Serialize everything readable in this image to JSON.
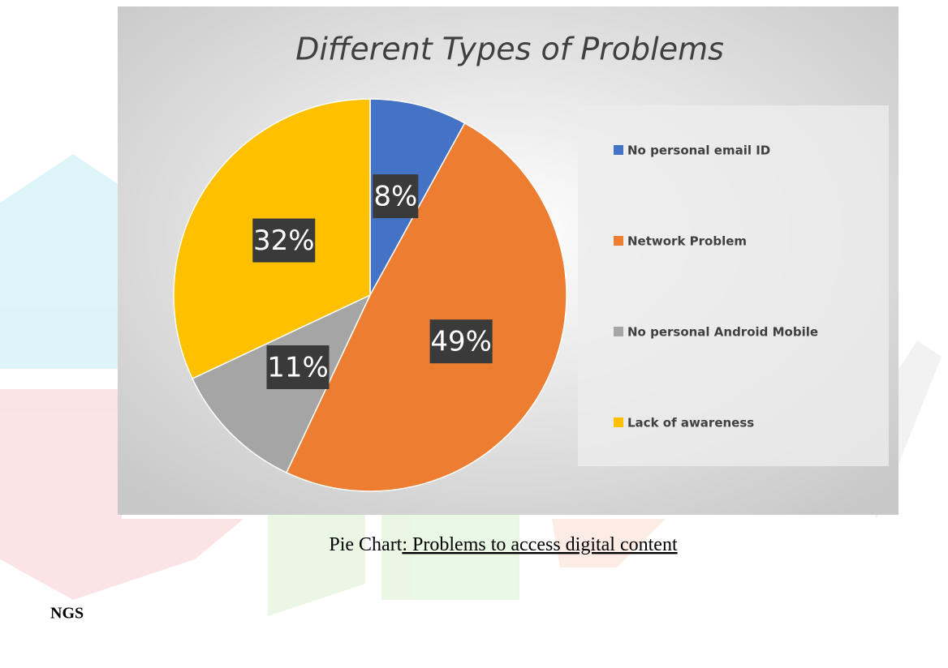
{
  "chart_data": {
    "type": "pie",
    "title": "Different Types of Problems",
    "categories": [
      "No personal email ID",
      "Network Problem",
      "No personal Android Mobile",
      "Lack of awareness"
    ],
    "values": [
      8,
      49,
      11,
      32
    ],
    "value_labels": [
      "8%",
      "49%",
      "11%",
      "32%"
    ],
    "colors": [
      "#4472c4",
      "#ed7d31",
      "#a5a5a5",
      "#ffc000"
    ],
    "legend": "right"
  },
  "caption": {
    "lead": "Pie Chart",
    "text": ": Problems to access digital content"
  },
  "heading": "NGS"
}
